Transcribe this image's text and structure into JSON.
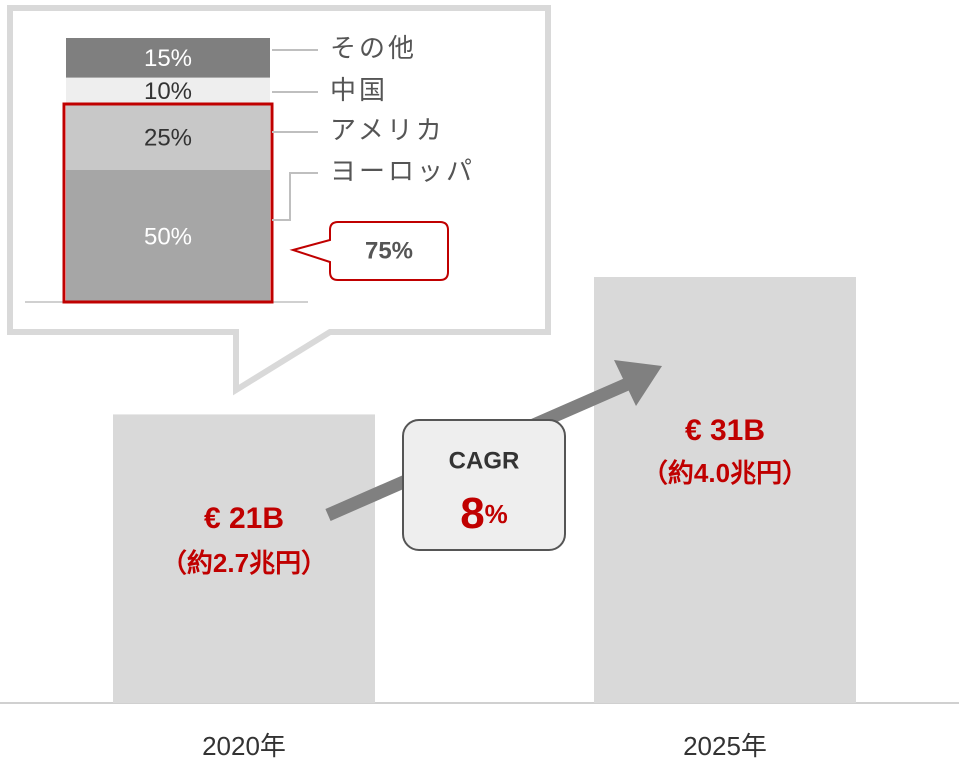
{
  "chart_data": [
    {
      "type": "bar",
      "categories": [
        "2020年",
        "2025年"
      ],
      "values": [
        21,
        31
      ],
      "value_labels": [
        "€ 21B",
        "€ 31B"
      ],
      "sub_labels": [
        "（約2.7兆円）",
        "（約4.0兆円）"
      ],
      "color": "#d9d9d9",
      "label_color": "#c00000",
      "annotation": {
        "title": "CAGR",
        "value": 8,
        "unit": "%"
      }
    },
    {
      "type": "stacked_bar",
      "series": [
        {
          "name": "ヨーロッパ",
          "color": "#a6a6a6",
          "values": [
            50
          ],
          "value_labels": [
            "50%"
          ]
        },
        {
          "name": "アメリカ",
          "color": "#c8c8c8",
          "values": [
            25
          ],
          "value_labels": [
            "25%"
          ]
        },
        {
          "name": "中国",
          "color": "#eeeeee",
          "values": [
            10
          ],
          "value_labels": [
            "10%"
          ]
        },
        {
          "name": "その他",
          "color": "#7f7f7f",
          "values": [
            15
          ],
          "value_labels": [
            "15%"
          ]
        }
      ],
      "highlight_color": "#c00000",
      "annotation": "75%"
    }
  ]
}
